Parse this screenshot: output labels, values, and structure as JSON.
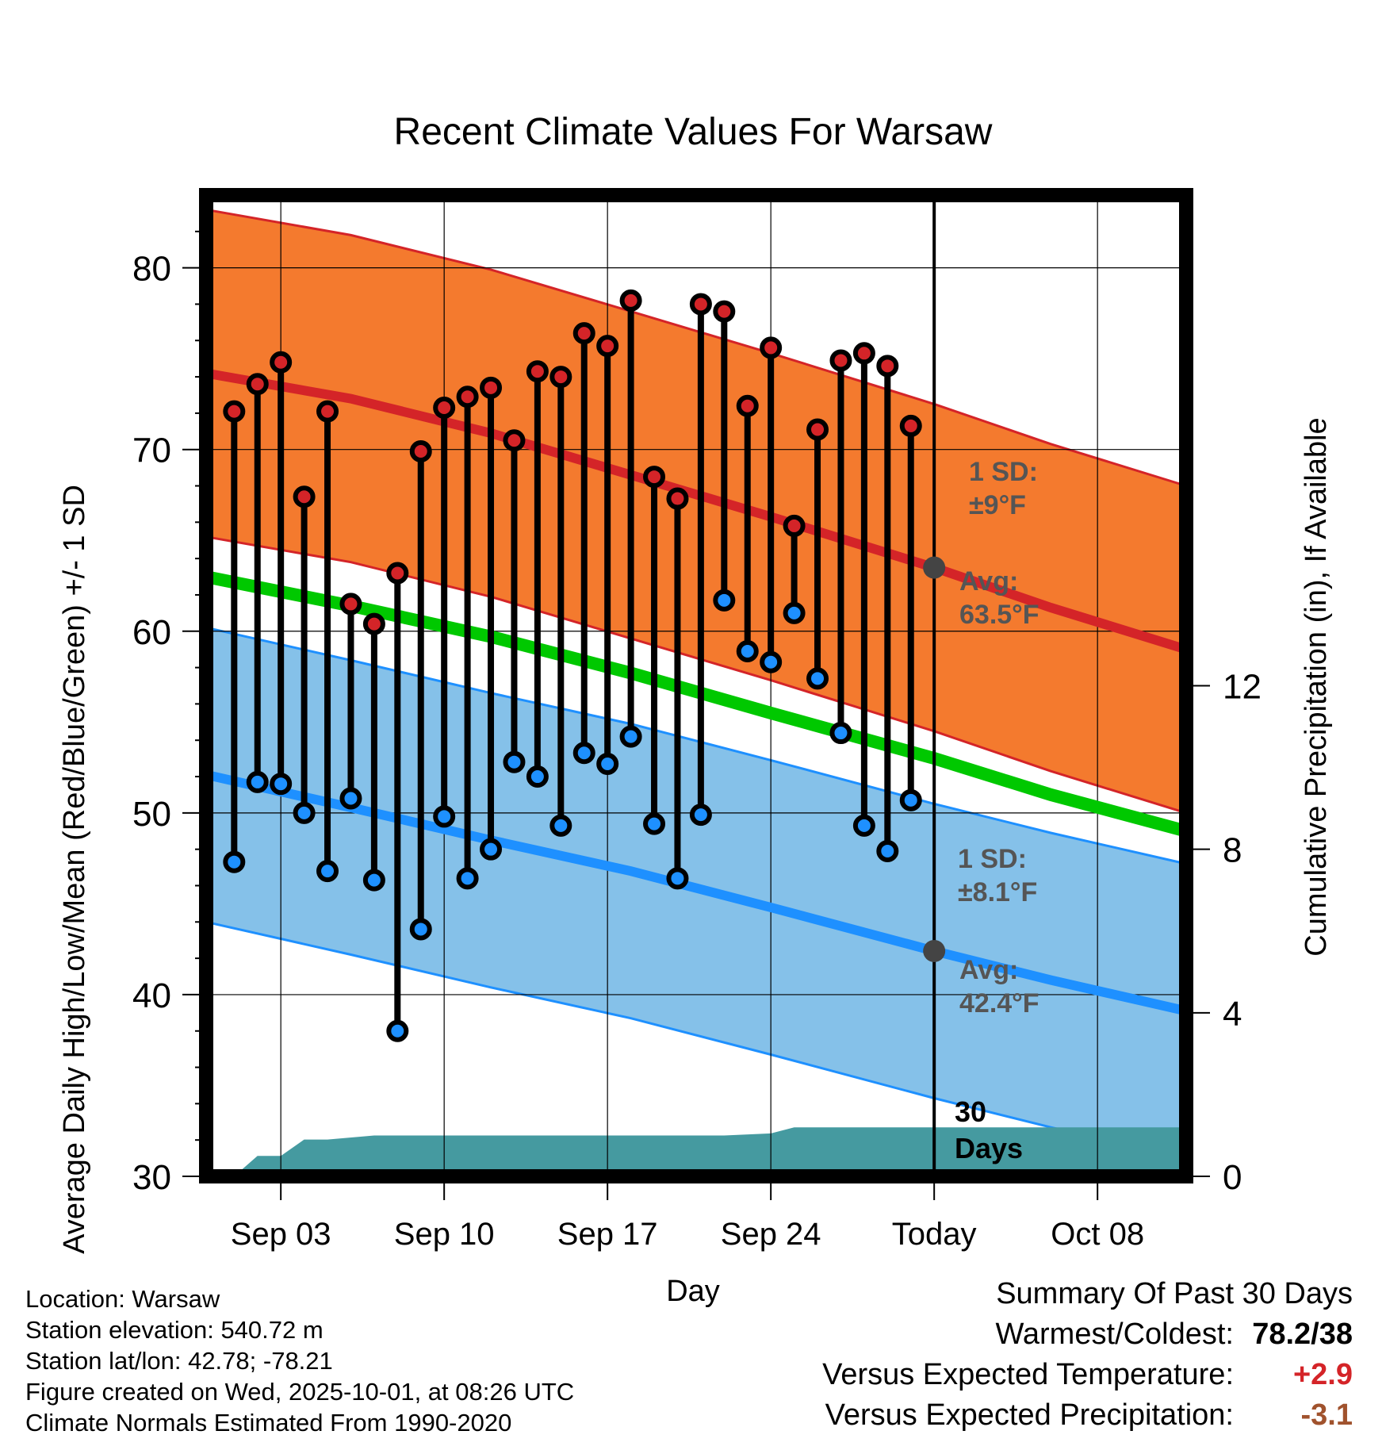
{
  "chart_data": {
    "type": "line",
    "title": "Recent Climate Values For Warsaw",
    "xlabel": "Day",
    "ylabel": "Average Daily High/Low/Mean (Red/Blue/Green) +/- 1 SD",
    "y2label": "Cumulative Precipitation (in), If Available",
    "ylim": [
      30,
      84
    ],
    "y2lim": [
      0,
      24
    ],
    "x_tick_labels": [
      "Sep 03",
      "Sep 10",
      "Sep 17",
      "Sep 24",
      "Today",
      "Oct 08"
    ],
    "x_tick_days": [
      3,
      10,
      17,
      24,
      31,
      38
    ],
    "xlim": [
      -0.2,
      41.8
    ],
    "y_ticks": [
      30,
      40,
      50,
      60,
      70,
      80
    ],
    "y2_ticks": [
      0,
      4,
      8,
      12
    ],
    "today_day": 31,
    "normals": {
      "high_avg": [
        {
          "day": -0.2,
          "v": 74.2
        },
        {
          "day": 6,
          "v": 72.8
        },
        {
          "day": 12,
          "v": 70.9
        },
        {
          "day": 18,
          "v": 68.6
        },
        {
          "day": 24,
          "v": 66.3
        },
        {
          "day": 31,
          "v": 63.5
        },
        {
          "day": 36,
          "v": 61.3
        },
        {
          "day": 41.8,
          "v": 59.0
        }
      ],
      "high_sd": 9,
      "low_avg": [
        {
          "day": -0.2,
          "v": 52.1
        },
        {
          "day": 6,
          "v": 50.3
        },
        {
          "day": 12,
          "v": 48.5
        },
        {
          "day": 18,
          "v": 46.8
        },
        {
          "day": 24,
          "v": 44.8
        },
        {
          "day": 31,
          "v": 42.4
        },
        {
          "day": 36,
          "v": 40.8
        },
        {
          "day": 41.8,
          "v": 39.1
        }
      ],
      "low_sd": 8.1,
      "mean_avg": [
        {
          "day": -0.2,
          "v": 63.0
        },
        {
          "day": 6,
          "v": 61.4
        },
        {
          "day": 12,
          "v": 59.7
        },
        {
          "day": 18,
          "v": 57.7
        },
        {
          "day": 24,
          "v": 55.5
        },
        {
          "day": 31,
          "v": 53.0
        },
        {
          "day": 36,
          "v": 51.0
        },
        {
          "day": 41.8,
          "v": 49.0
        }
      ]
    },
    "daily": [
      {
        "day": 1,
        "high": 72.1,
        "low": 47.3
      },
      {
        "day": 2,
        "high": 73.6,
        "low": 51.7
      },
      {
        "day": 3,
        "high": 74.8,
        "low": 51.6
      },
      {
        "day": 4,
        "high": 67.4,
        "low": 50.0
      },
      {
        "day": 5,
        "high": 72.1,
        "low": 46.8
      },
      {
        "day": 6,
        "high": 61.5,
        "low": 50.8
      },
      {
        "day": 7,
        "high": 60.4,
        "low": 46.3
      },
      {
        "day": 8,
        "high": 63.2,
        "low": 38.0
      },
      {
        "day": 9,
        "high": 69.9,
        "low": 43.6
      },
      {
        "day": 10,
        "high": 72.3,
        "low": 49.8
      },
      {
        "day": 11,
        "high": 72.9,
        "low": 46.4
      },
      {
        "day": 12,
        "high": 73.4,
        "low": 48.0
      },
      {
        "day": 13,
        "high": 70.5,
        "low": 52.8
      },
      {
        "day": 14,
        "high": 74.3,
        "low": 52.0
      },
      {
        "day": 15,
        "high": 74.0,
        "low": 49.3
      },
      {
        "day": 16,
        "high": 76.4,
        "low": 53.3
      },
      {
        "day": 17,
        "high": 75.7,
        "low": 52.7
      },
      {
        "day": 18,
        "high": 78.2,
        "low": 54.2
      },
      {
        "day": 19,
        "high": 68.5,
        "low": 49.4
      },
      {
        "day": 20,
        "high": 67.3,
        "low": 46.4
      },
      {
        "day": 21,
        "high": 78.0,
        "low": 49.9
      },
      {
        "day": 22,
        "high": 77.6,
        "low": 61.7
      },
      {
        "day": 23,
        "high": 72.4,
        "low": 58.9
      },
      {
        "day": 24,
        "high": 75.6,
        "low": 58.3
      },
      {
        "day": 25,
        "high": 65.8,
        "low": 61.0
      },
      {
        "day": 26,
        "high": 71.1,
        "low": 57.4
      },
      {
        "day": 27,
        "high": 74.9,
        "low": 54.4
      },
      {
        "day": 28,
        "high": 75.3,
        "low": 49.3
      },
      {
        "day": 29,
        "high": 74.6,
        "low": 47.9
      },
      {
        "day": 30,
        "high": 71.3,
        "low": 50.7
      }
    ],
    "cumulative_precip": [
      {
        "day": 1,
        "v": 0.0
      },
      {
        "day": 2,
        "v": 0.5
      },
      {
        "day": 3,
        "v": 0.5
      },
      {
        "day": 4,
        "v": 0.9
      },
      {
        "day": 5,
        "v": 0.9
      },
      {
        "day": 7,
        "v": 1.0
      },
      {
        "day": 22,
        "v": 1.0
      },
      {
        "day": 24,
        "v": 1.05
      },
      {
        "day": 25,
        "v": 1.2
      },
      {
        "day": 41.8,
        "v": 1.2
      }
    ],
    "annotations": {
      "high_sd": "1 SD:",
      "high_sd_value": "±9°F",
      "high_avg": "Avg:",
      "high_avg_value": "63.5°F",
      "low_sd": "1 SD:",
      "low_sd_value": "±8.1°F",
      "low_avg": "Avg:",
      "low_avg_value": "42.4°F",
      "days_line1": "30",
      "days_line2": "Days"
    }
  },
  "colors": {
    "high_band": "#f47a2e",
    "high_line": "#d42428",
    "low_band": "#85c1e9",
    "low_line": "#1e90ff",
    "mean_line": "#00c800",
    "precip": "#459aa0",
    "high_dot": "#d42428",
    "low_dot": "#1e90ff",
    "temp_anomaly": "#d42428",
    "precip_anomaly": "#a0522d"
  },
  "footer": {
    "location": "Location: Warsaw",
    "elevation": "Station elevation: 540.72 m",
    "latlon": "Station lat/lon: 42.78; -78.21",
    "created": "Figure created on Wed, 2025-10-01, at 08:26 UTC",
    "normals": "Climate Normals Estimated From 1990-2020"
  },
  "summary": {
    "heading": "Summary Of Past 30 Days",
    "warm_cold_label": "Warmest/Coldest:",
    "warm_cold_value": "78.2/38",
    "temp_label": "Versus Expected Temperature:",
    "temp_value": "+2.9",
    "precip_label": "Versus Expected Precipitation:",
    "precip_value": "-3.1"
  }
}
